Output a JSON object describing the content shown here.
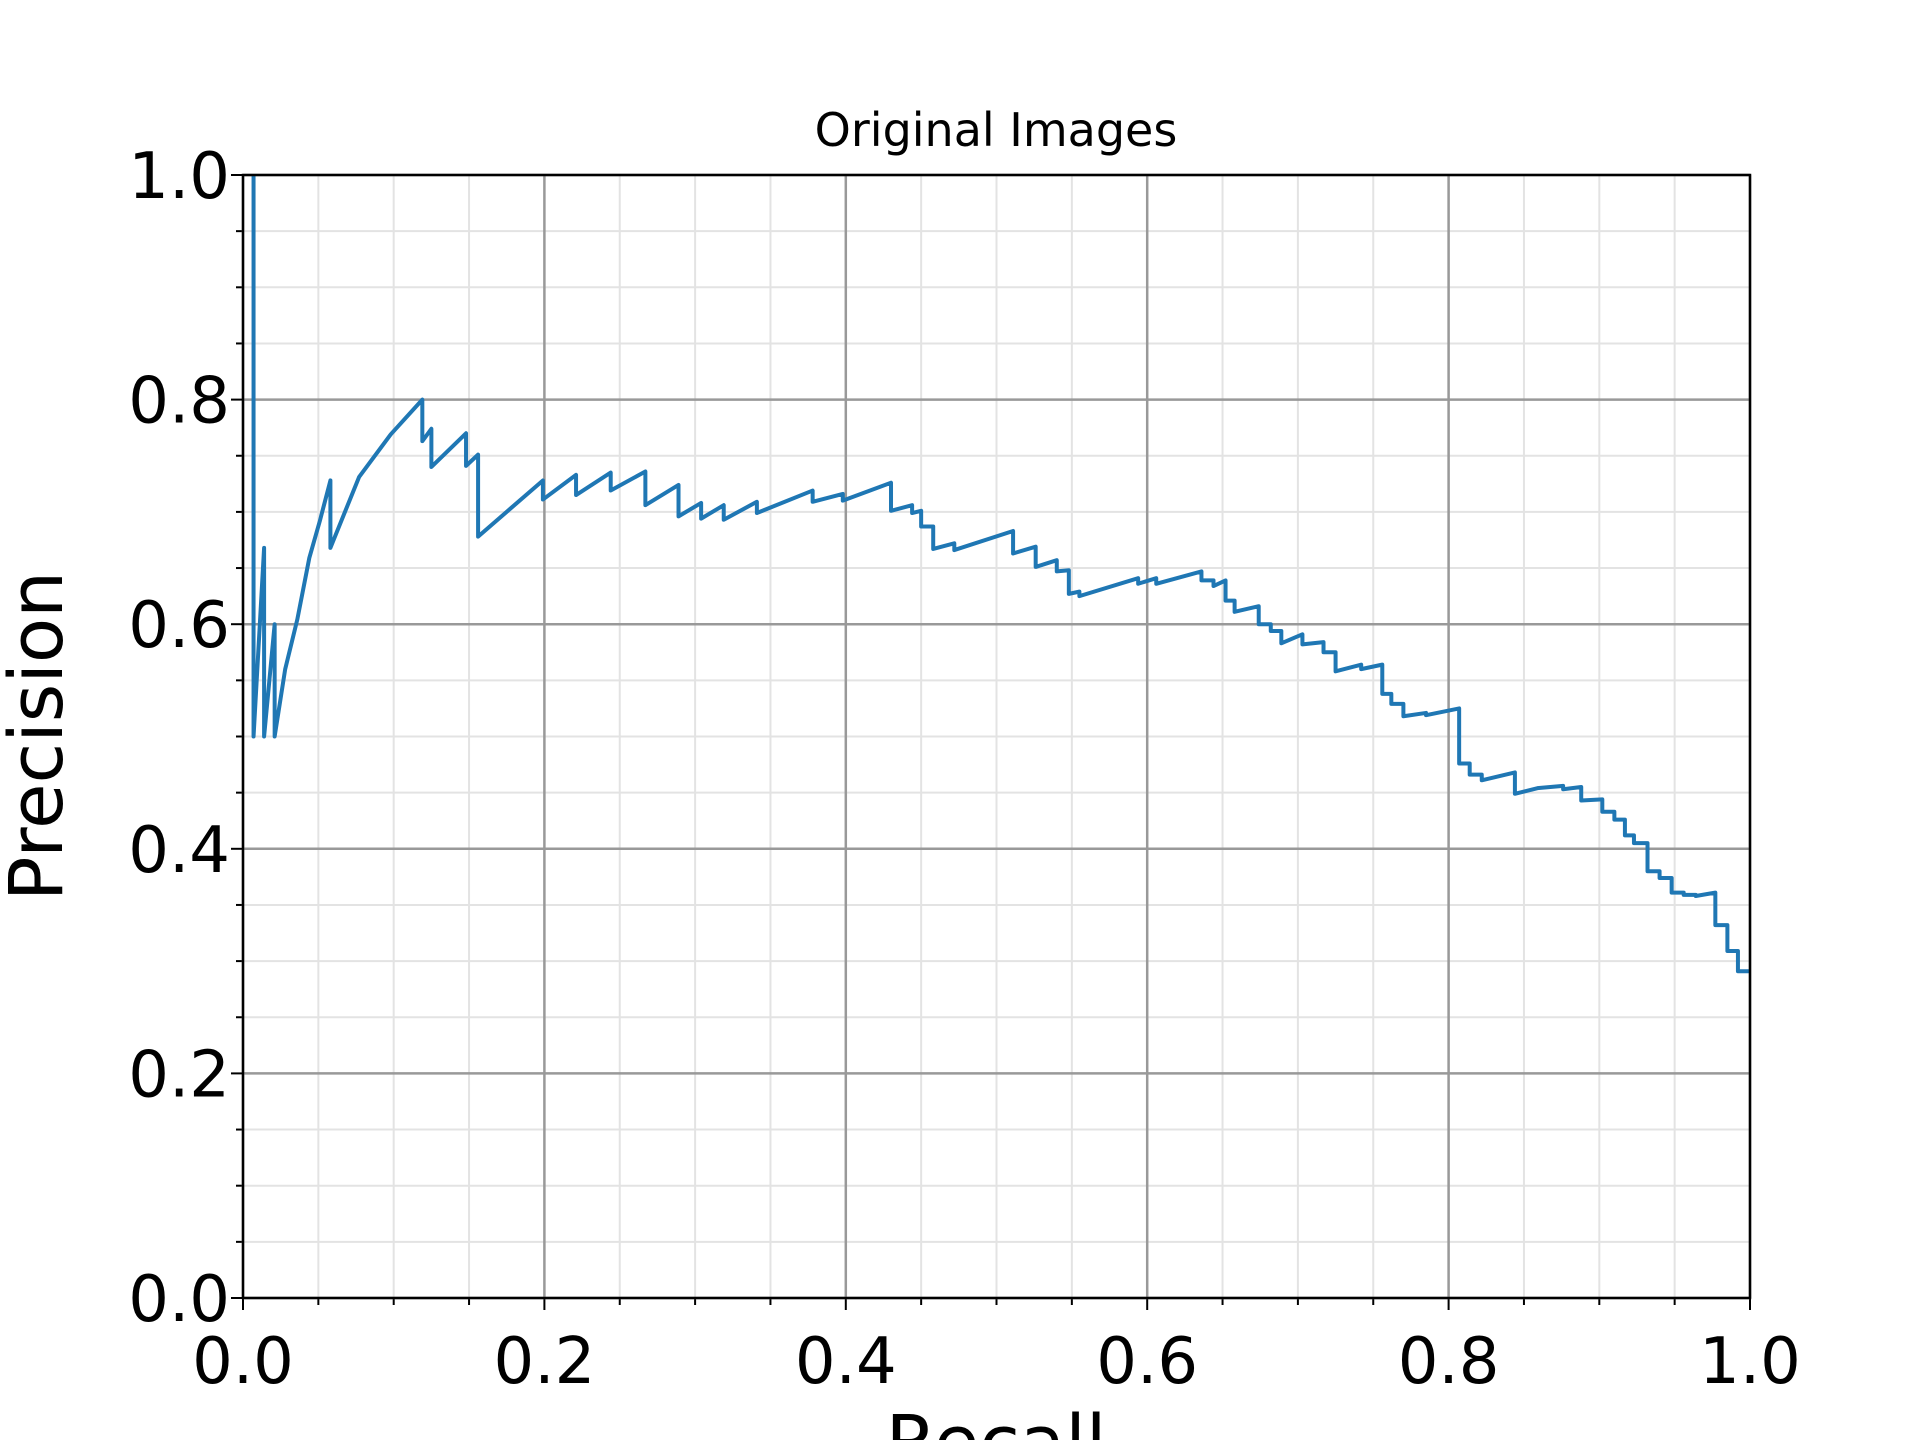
{
  "chart_data": {
    "type": "line",
    "title": "Original Images",
    "xlabel": "Recall",
    "ylabel": "Precision",
    "color": "#1f77b4",
    "grid": true,
    "minor_grid": true,
    "xlim": [
      0,
      1
    ],
    "ylim": [
      0,
      1
    ],
    "xticks": [
      {
        "value": 0,
        "label": "0.0"
      },
      0.2,
      0.4,
      0.6,
      0.8,
      {
        "value": 1,
        "label": "1.0"
      }
    ],
    "yticks": [
      {
        "value": 0,
        "label": "0.0"
      },
      0.2,
      0.4,
      0.6,
      0.8,
      {
        "value": 1,
        "label": "1.0"
      }
    ],
    "x": [
      0.007,
      0.007,
      0.014,
      0.014,
      0.021,
      0.021,
      0.028,
      0.036,
      0.044,
      0.051,
      0.058,
      0.058,
      0.077,
      0.098,
      0.119,
      0.119,
      0.125,
      0.125,
      0.148,
      0.148,
      0.156,
      0.156,
      0.199,
      0.199,
      0.221,
      0.221,
      0.244,
      0.244,
      0.267,
      0.267,
      0.289,
      0.289,
      0.304,
      0.304,
      0.319,
      0.319,
      0.341,
      0.341,
      0.378,
      0.378,
      0.398,
      0.398,
      0.43,
      0.43,
      0.444,
      0.444,
      0.45,
      0.45,
      0.458,
      0.458,
      0.472,
      0.472,
      0.511,
      0.511,
      0.526,
      0.526,
      0.54,
      0.54,
      0.548,
      0.548,
      0.555,
      0.555,
      0.594,
      0.594,
      0.606,
      0.606,
      0.636,
      0.636,
      0.644,
      0.644,
      0.652,
      0.652,
      0.658,
      0.658,
      0.674,
      0.674,
      0.682,
      0.682,
      0.689,
      0.689,
      0.703,
      0.703,
      0.717,
      0.717,
      0.725,
      0.725,
      0.742,
      0.742,
      0.756,
      0.756,
      0.762,
      0.762,
      0.77,
      0.77,
      0.785,
      0.785,
      0.807,
      0.807,
      0.814,
      0.814,
      0.822,
      0.822,
      0.844,
      0.844,
      0.859,
      0.876,
      0.876,
      0.888,
      0.888,
      0.902,
      0.902,
      0.91,
      0.91,
      0.917,
      0.917,
      0.923,
      0.923,
      0.932,
      0.932,
      0.94,
      0.94,
      0.948,
      0.948,
      0.956,
      0.956,
      0.964,
      0.964,
      0.977,
      0.977,
      0.985,
      0.985,
      0.992,
      0.992,
      1.0
    ],
    "values": [
      1.0,
      0.5,
      0.668,
      0.5,
      0.6,
      0.5,
      0.56,
      0.604,
      0.659,
      0.692,
      0.728,
      0.668,
      0.731,
      0.769,
      0.8,
      0.763,
      0.774,
      0.74,
      0.77,
      0.741,
      0.751,
      0.678,
      0.728,
      0.711,
      0.733,
      0.715,
      0.735,
      0.719,
      0.736,
      0.706,
      0.724,
      0.696,
      0.708,
      0.694,
      0.706,
      0.693,
      0.709,
      0.699,
      0.719,
      0.709,
      0.716,
      0.71,
      0.726,
      0.701,
      0.706,
      0.699,
      0.701,
      0.687,
      0.687,
      0.667,
      0.672,
      0.666,
      0.683,
      0.663,
      0.669,
      0.651,
      0.657,
      0.647,
      0.648,
      0.627,
      0.629,
      0.625,
      0.641,
      0.636,
      0.641,
      0.636,
      0.647,
      0.639,
      0.639,
      0.634,
      0.639,
      0.621,
      0.621,
      0.611,
      0.616,
      0.6,
      0.6,
      0.594,
      0.594,
      0.583,
      0.591,
      0.582,
      0.584,
      0.575,
      0.575,
      0.558,
      0.564,
      0.56,
      0.564,
      0.538,
      0.538,
      0.529,
      0.529,
      0.518,
      0.521,
      0.519,
      0.525,
      0.476,
      0.476,
      0.466,
      0.466,
      0.461,
      0.468,
      0.449,
      0.454,
      0.456,
      0.453,
      0.455,
      0.443,
      0.444,
      0.433,
      0.433,
      0.426,
      0.426,
      0.412,
      0.412,
      0.405,
      0.405,
      0.38,
      0.38,
      0.374,
      0.374,
      0.361,
      0.361,
      0.359,
      0.359,
      0.358,
      0.361,
      0.332,
      0.332,
      0.309,
      0.309,
      0.291,
      0.291
    ]
  }
}
